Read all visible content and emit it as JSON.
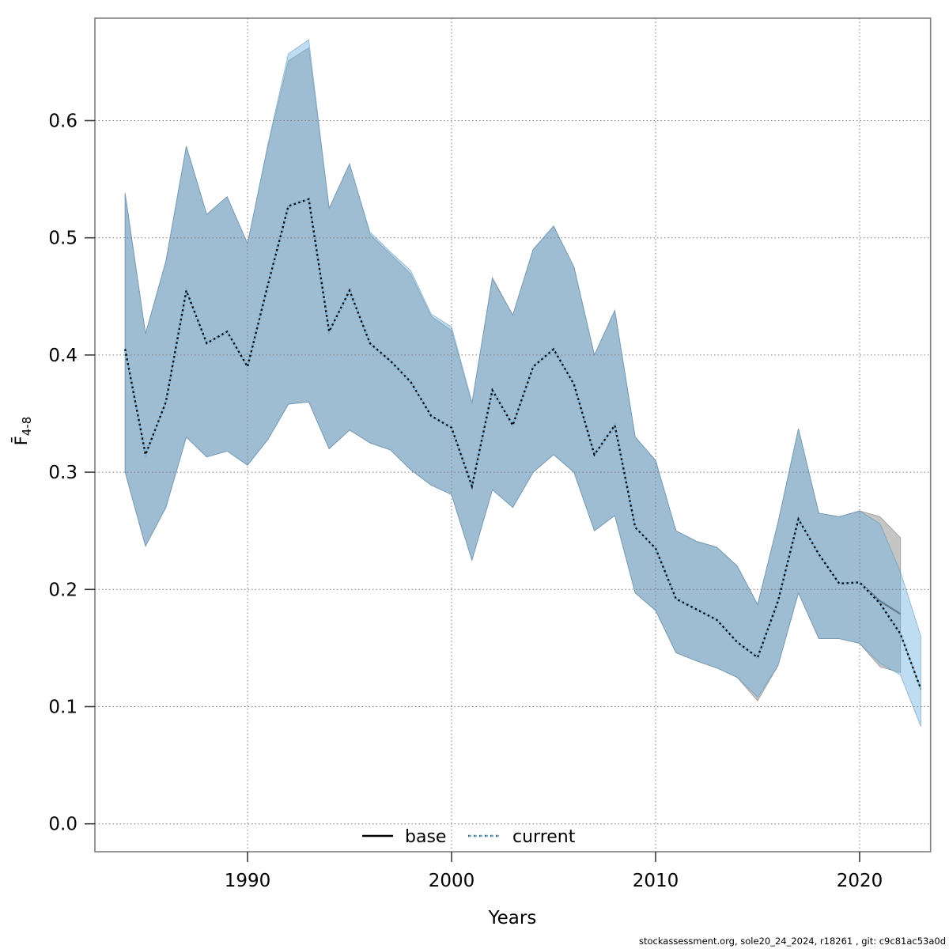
{
  "footer": "stockassessment.org, sole20_24_2024, r18261 , git: c9c81ac53a0d",
  "legend": {
    "base_label": "base",
    "current_label": "current"
  },
  "colors": {
    "base_band_fill": "#c5c5c5",
    "base_band_stroke": "#a3a3a3",
    "current_band_fill_rgba": "rgba(110,178,226,0.45)",
    "current_band_stroke": "rgba(95,150,185,0.55)",
    "base_line": "#63808f",
    "current_line_blue": "#85bbdc",
    "current_line_dash": "#0a0a0a",
    "legend_base_line": "#000000",
    "legend_current_line": "#74b0d2",
    "grid": "#7d7d7d",
    "border": "#7f7f7f",
    "tick": "#3a3a3a",
    "footer_text": "#1a1a1a"
  },
  "chart_data": {
    "type": "line",
    "title": "",
    "xlabel": "Years",
    "ylabel": "F4-8 (mean fishing mortality, ages 4-8)",
    "ylabel_main": "F̄",
    "ylabel_sub": "4-8",
    "xlim": [
      1982.5,
      2023.5
    ],
    "ylim": [
      -0.024,
      0.687
    ],
    "grid": true,
    "legend_position": "bottom-center-inside",
    "x_ticks": [
      1990,
      2000,
      2010,
      2020
    ],
    "x_tick_labels": [
      "1990",
      "2000",
      "2010",
      "2020"
    ],
    "y_ticks": [
      0.0,
      0.1,
      0.2,
      0.3,
      0.4,
      0.5,
      0.6
    ],
    "y_tick_labels": [
      "0.0",
      "0.1",
      "0.2",
      "0.3",
      "0.4",
      "0.5",
      "0.6"
    ],
    "series": [
      {
        "name": "base",
        "style": "solid",
        "years": [
          1984,
          1985,
          1986,
          1987,
          1988,
          1989,
          1990,
          1991,
          1992,
          1993,
          1994,
          1995,
          1996,
          1997,
          1998,
          1999,
          2000,
          2001,
          2002,
          2003,
          2004,
          2005,
          2006,
          2007,
          2008,
          2009,
          2010,
          2011,
          2012,
          2013,
          2014,
          2015,
          2016,
          2017,
          2018,
          2019,
          2020,
          2021,
          2022
        ],
        "values": [
          0.405,
          0.315,
          0.36,
          0.455,
          0.41,
          0.42,
          0.39,
          0.46,
          0.527,
          0.533,
          0.42,
          0.455,
          0.41,
          0.395,
          0.377,
          0.348,
          0.338,
          0.288,
          0.37,
          0.34,
          0.39,
          0.405,
          0.375,
          0.315,
          0.34,
          0.253,
          0.235,
          0.192,
          0.183,
          0.174,
          0.155,
          0.142,
          0.19,
          0.26,
          0.23,
          0.205,
          0.206,
          0.19,
          0.179
        ],
        "upper": [
          0.538,
          0.418,
          0.48,
          0.578,
          0.52,
          0.535,
          0.495,
          0.578,
          0.651,
          0.662,
          0.525,
          0.563,
          0.503,
          0.486,
          0.469,
          0.433,
          0.421,
          0.358,
          0.466,
          0.434,
          0.49,
          0.51,
          0.475,
          0.4,
          0.438,
          0.33,
          0.31,
          0.25,
          0.241,
          0.236,
          0.22,
          0.187,
          0.257,
          0.337,
          0.265,
          0.262,
          0.267,
          0.262,
          0.244
        ],
        "lower": [
          0.3,
          0.237,
          0.27,
          0.33,
          0.313,
          0.318,
          0.306,
          0.328,
          0.358,
          0.36,
          0.32,
          0.336,
          0.325,
          0.319,
          0.302,
          0.289,
          0.281,
          0.225,
          0.285,
          0.27,
          0.3,
          0.315,
          0.3,
          0.25,
          0.263,
          0.197,
          0.182,
          0.146,
          0.139,
          0.133,
          0.125,
          0.105,
          0.135,
          0.197,
          0.158,
          0.158,
          0.154,
          0.134,
          0.129
        ]
      },
      {
        "name": "current",
        "style": "dashed",
        "years": [
          1984,
          1985,
          1986,
          1987,
          1988,
          1989,
          1990,
          1991,
          1992,
          1993,
          1994,
          1995,
          1996,
          1997,
          1998,
          1999,
          2000,
          2001,
          2002,
          2003,
          2004,
          2005,
          2006,
          2007,
          2008,
          2009,
          2010,
          2011,
          2012,
          2013,
          2014,
          2015,
          2016,
          2017,
          2018,
          2019,
          2020,
          2021,
          2022,
          2023
        ],
        "values": [
          0.405,
          0.315,
          0.36,
          0.455,
          0.41,
          0.42,
          0.39,
          0.46,
          0.527,
          0.533,
          0.42,
          0.455,
          0.41,
          0.395,
          0.377,
          0.348,
          0.338,
          0.288,
          0.37,
          0.34,
          0.39,
          0.405,
          0.375,
          0.315,
          0.34,
          0.253,
          0.235,
          0.192,
          0.183,
          0.174,
          0.155,
          0.142,
          0.19,
          0.26,
          0.23,
          0.205,
          0.206,
          0.188,
          0.162,
          0.115
        ],
        "upper": [
          0.538,
          0.418,
          0.48,
          0.578,
          0.52,
          0.535,
          0.495,
          0.58,
          0.657,
          0.669,
          0.525,
          0.563,
          0.505,
          0.488,
          0.472,
          0.435,
          0.424,
          0.36,
          0.465,
          0.434,
          0.49,
          0.51,
          0.475,
          0.4,
          0.438,
          0.33,
          0.31,
          0.25,
          0.241,
          0.236,
          0.22,
          0.187,
          0.257,
          0.337,
          0.265,
          0.262,
          0.267,
          0.256,
          0.215,
          0.16
        ],
        "lower": [
          0.3,
          0.237,
          0.27,
          0.33,
          0.313,
          0.318,
          0.306,
          0.328,
          0.358,
          0.36,
          0.32,
          0.336,
          0.325,
          0.319,
          0.302,
          0.289,
          0.281,
          0.225,
          0.285,
          0.27,
          0.3,
          0.315,
          0.3,
          0.25,
          0.263,
          0.197,
          0.182,
          0.146,
          0.139,
          0.133,
          0.125,
          0.108,
          0.135,
          0.197,
          0.158,
          0.158,
          0.154,
          0.137,
          0.127,
          0.083
        ]
      }
    ]
  }
}
